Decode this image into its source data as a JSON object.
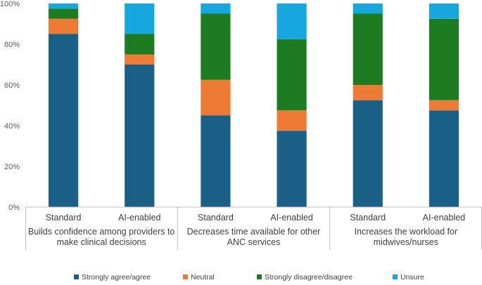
{
  "chart_data": {
    "type": "bar",
    "stacked": true,
    "normalized": true,
    "y_ticks": [
      "0%",
      "20%",
      "40%",
      "60%",
      "80%",
      "100%"
    ],
    "ylim": [
      0,
      100
    ],
    "grid": false,
    "legend_position": "bottom",
    "groups": [
      {
        "label_lines": [
          "Builds confidence among providers to",
          "make clinical decisions"
        ],
        "categories": [
          "Standard",
          "AI-enabled"
        ]
      },
      {
        "label_lines": [
          "Decreases time available for other",
          "ANC services"
        ],
        "categories": [
          "Standard",
          "AI-enabled"
        ]
      },
      {
        "label_lines": [
          "Increases the workload for",
          "midwives/nurses"
        ],
        "categories": [
          "Standard",
          "AI-enabled"
        ]
      }
    ],
    "categories": [
      "Standard",
      "AI-enabled",
      "Standard",
      "AI-enabled",
      "Standard",
      "AI-enabled"
    ],
    "series": [
      {
        "name": "Strongly agree/agree",
        "color": "#1a5f86",
        "values": [
          85,
          70,
          45,
          37.5,
          52.5,
          47.5
        ]
      },
      {
        "name": "Neutral",
        "color": "#ee7b35",
        "values": [
          7.5,
          5,
          17.5,
          10,
          7.5,
          5
        ]
      },
      {
        "name": "Strongly disagree/disagree",
        "color": "#1d7b22",
        "values": [
          5,
          10,
          32.5,
          35,
          35,
          40
        ]
      },
      {
        "name": "Unsure",
        "color": "#17a6dd",
        "values": [
          2.5,
          15,
          5,
          17.5,
          5,
          7.5
        ]
      }
    ]
  }
}
